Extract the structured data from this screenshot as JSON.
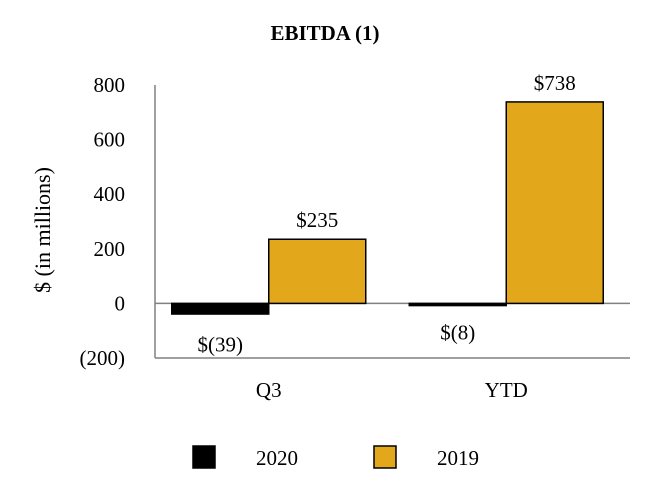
{
  "chart_data": {
    "type": "bar",
    "title": "EBITDA (1)",
    "xlabel": "",
    "ylabel": "$ (in millions)",
    "ylim": [
      -200,
      800
    ],
    "yticks": [
      800,
      600,
      400,
      200,
      0,
      -200
    ],
    "ytick_labels": [
      "800",
      "600",
      "400",
      "200",
      "0",
      "(200)"
    ],
    "categories": [
      "Q3",
      "YTD"
    ],
    "series": [
      {
        "name": "2020",
        "color": "#000000",
        "values": [
          -39,
          -8
        ],
        "labels": [
          "$(39)",
          "$(8)"
        ]
      },
      {
        "name": "2019",
        "color": "#E2A71B",
        "values": [
          235,
          738
        ],
        "labels": [
          "$235",
          "$738"
        ]
      }
    ],
    "grid": false,
    "legend_position": "bottom"
  }
}
